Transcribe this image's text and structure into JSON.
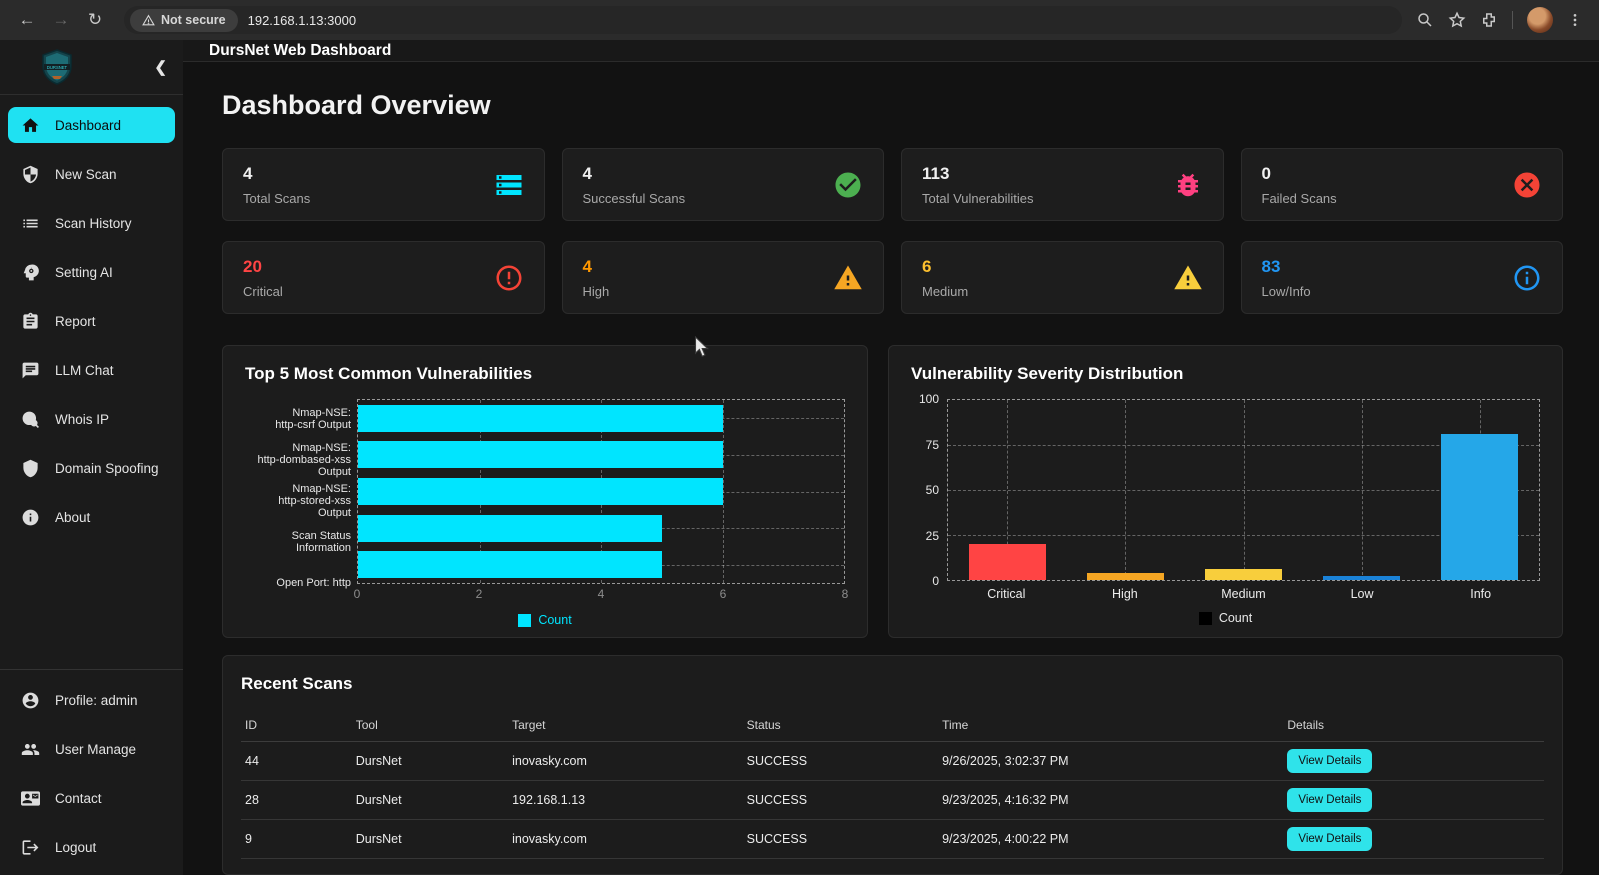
{
  "browser": {
    "security_badge": "Not secure",
    "url": "192.168.1.13:3000"
  },
  "header": {
    "title": "DursNet Web Dashboard"
  },
  "page": {
    "title": "Dashboard Overview"
  },
  "sidebar": {
    "items": [
      {
        "label": "Dashboard",
        "active": true
      },
      {
        "label": "New Scan"
      },
      {
        "label": "Scan History"
      },
      {
        "label": "Setting AI"
      },
      {
        "label": "Report"
      },
      {
        "label": "LLM Chat"
      },
      {
        "label": "Whois IP"
      },
      {
        "label": "Domain Spoofing"
      },
      {
        "label": "About"
      }
    ],
    "footer_items": [
      {
        "label": "Profile: admin"
      },
      {
        "label": "User Manage"
      },
      {
        "label": "Contact"
      },
      {
        "label": "Logout"
      }
    ]
  },
  "cards": [
    {
      "value": "4",
      "label": "Total Scans",
      "icon": "storage-icon",
      "accent": "#00e5ff"
    },
    {
      "value": "4",
      "label": "Successful Scans",
      "icon": "check-circle-icon",
      "accent": "#4caf50"
    },
    {
      "value": "113",
      "label": "Total Vulnerabilities",
      "icon": "bug-icon",
      "accent": "#ff4081"
    },
    {
      "value": "0",
      "label": "Failed Scans",
      "icon": "cancel-icon",
      "accent": "#f44336"
    },
    {
      "value": "20",
      "label": "Critical",
      "icon": "error-outline-icon",
      "accent": "#ff4444",
      "value_class": "c-red"
    },
    {
      "value": "4",
      "label": "High",
      "icon": "warning-icon-orange",
      "accent": "#ff9800",
      "value_class": "c-orange"
    },
    {
      "value": "6",
      "label": "Medium",
      "icon": "warning-icon-yellow",
      "accent": "#fcc02e",
      "value_class": "c-yellow"
    },
    {
      "value": "83",
      "label": "Low/Info",
      "icon": "info-outline-icon",
      "accent": "#2196f3",
      "value_class": "c-blue"
    }
  ],
  "chart_data": [
    {
      "type": "bar",
      "orientation": "horizontal",
      "title": "Top 5 Most Common Vulnerabilities",
      "categories": [
        "Nmap-NSE:\nhttp-csrf Output",
        "Nmap-NSE:\nhttp-dombased-xss\nOutput",
        "Nmap-NSE:\nhttp-stored-xss\nOutput",
        "Scan Status\nInformation",
        "Open Port: http"
      ],
      "values": [
        6,
        6,
        6,
        5,
        5
      ],
      "xlim": [
        0,
        8
      ],
      "xticks": [
        0,
        2,
        4,
        6,
        8
      ],
      "bar_color": "#00e5ff",
      "legend": "Count",
      "legend_position": "bottom",
      "grid": "dashed"
    },
    {
      "type": "bar",
      "orientation": "vertical",
      "title": "Vulnerability Severity Distribution",
      "categories": [
        "Critical",
        "High",
        "Medium",
        "Low",
        "Info"
      ],
      "values": [
        20,
        4,
        6,
        2,
        81
      ],
      "bar_colors": [
        "#ff4444",
        "#f5a623",
        "#f8ce3c",
        "#1a82d8",
        "#25a7e8"
      ],
      "ylim": [
        0,
        100
      ],
      "yticks": [
        0,
        25,
        50,
        75,
        100
      ],
      "legend": "Count",
      "legend_swatch_color": "#000000",
      "legend_position": "bottom",
      "grid": "dashed"
    }
  ],
  "recent": {
    "title": "Recent Scans",
    "columns": [
      "ID",
      "Tool",
      "Target",
      "Status",
      "Time",
      "Details"
    ],
    "details_label": "View Details",
    "rows": [
      {
        "id": "44",
        "tool": "DursNet",
        "target": "inovasky.com",
        "status": "SUCCESS",
        "time": "9/26/2025, 3:02:37 PM"
      },
      {
        "id": "28",
        "tool": "DursNet",
        "target": "192.168.1.13",
        "status": "SUCCESS",
        "time": "9/23/2025, 4:16:32 PM"
      },
      {
        "id": "9",
        "tool": "DursNet",
        "target": "inovasky.com",
        "status": "SUCCESS",
        "time": "9/23/2025, 4:00:22 PM"
      }
    ]
  },
  "colors": {
    "accent_cyan": "#1fe1f2",
    "bar_cyan": "#00e5ff",
    "bg_main": "#121212",
    "panel": "#1c1c1c"
  }
}
